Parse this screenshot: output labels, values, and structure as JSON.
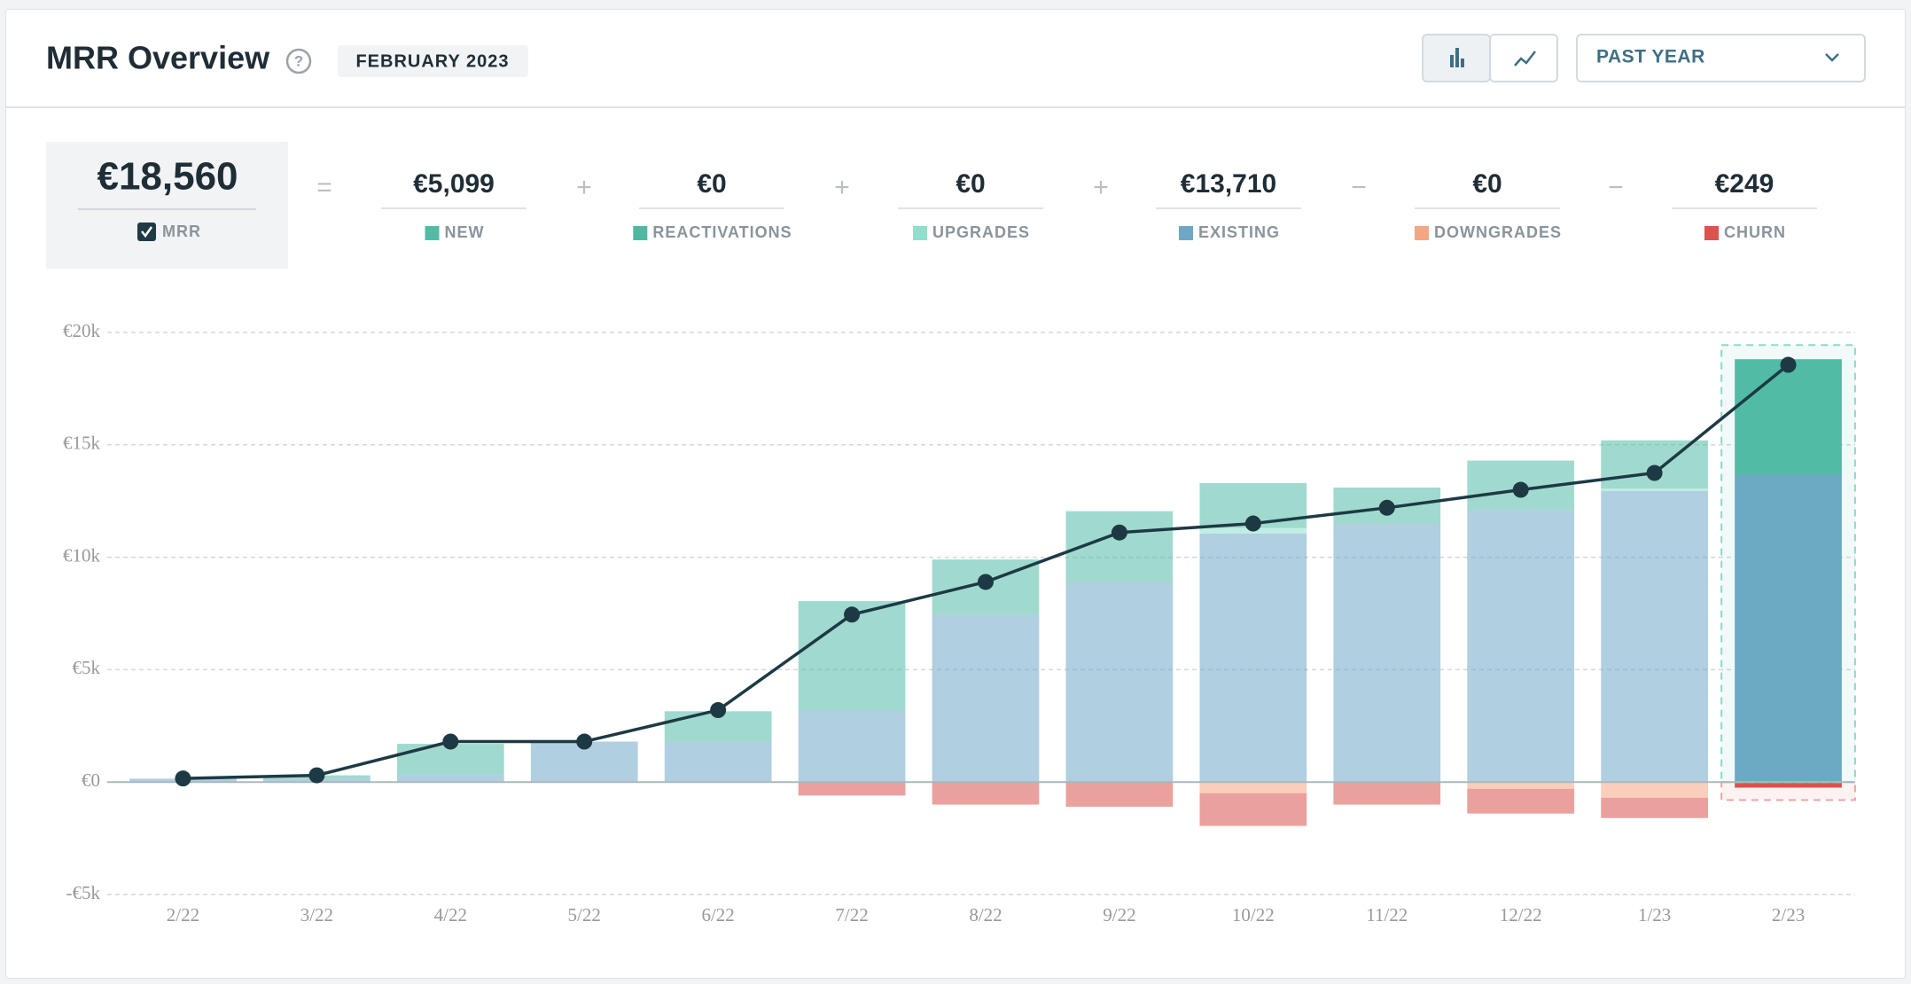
{
  "header": {
    "title": "MRR Overview",
    "period": "FEBRUARY 2023",
    "range": "PAST YEAR"
  },
  "summary": {
    "mrr": {
      "value": "€18,560",
      "label": "MRR"
    },
    "items": [
      {
        "operator": "=",
        "value": "€5,099"
      },
      {
        "operator": "+",
        "value": "€0"
      },
      {
        "operator": "+",
        "value": "€0"
      },
      {
        "operator": "+",
        "value": "€13,710"
      },
      {
        "operator": "−",
        "value": "€0"
      },
      {
        "operator": "−",
        "value": "€249"
      }
    ]
  },
  "chart_data": {
    "type": "bar",
    "categories": [
      "2/22",
      "3/22",
      "4/22",
      "5/22",
      "6/22",
      "7/22",
      "8/22",
      "9/22",
      "10/22",
      "11/22",
      "12/22",
      "1/23",
      "2/23"
    ],
    "series": [
      {
        "name": "NEW",
        "color": "#52bba6",
        "values": [
          0,
          150,
          1400,
          0,
          1350,
          4850,
          2450,
          3150,
          2000,
          1600,
          2200,
          2150,
          5099
        ]
      },
      {
        "name": "REACTIVATIONS",
        "color": "#4fb8a0",
        "values": [
          0,
          0,
          0,
          0,
          0,
          0,
          0,
          0,
          0,
          0,
          0,
          0,
          0
        ]
      },
      {
        "name": "UPGRADES",
        "color": "#8ee0cc",
        "values": [
          0,
          0,
          0,
          0,
          0,
          0,
          0,
          0,
          250,
          0,
          0,
          100,
          0
        ]
      },
      {
        "name": "EXISTING",
        "color": "#6fa8c6",
        "values": [
          150,
          150,
          300,
          1800,
          1800,
          3200,
          7450,
          8900,
          11050,
          11500,
          12100,
          12950,
          13710
        ]
      },
      {
        "name": "DOWNGRADES",
        "color": "#f4a582",
        "values": [
          0,
          0,
          0,
          0,
          0,
          0,
          0,
          0,
          -500,
          0,
          -300,
          -700,
          0
        ]
      },
      {
        "name": "CHURN",
        "color": "#d9534f",
        "values": [
          0,
          0,
          0,
          0,
          0,
          -600,
          -1000,
          -1100,
          -1450,
          -1000,
          -1100,
          -900,
          -249
        ]
      },
      {
        "type": "line",
        "color": "#1d3a44",
        "values": [
          160,
          300,
          1800,
          1800,
          3200,
          7450,
          8900,
          11100,
          11500,
          12200,
          13000,
          13750,
          18560
        ]
      }
    ],
    "ylim": [
      -5000,
      20000
    ],
    "yticks": [
      {
        "value": -5000,
        "label": "-€5k"
      },
      {
        "value": 0,
        "label": "€0"
      },
      {
        "value": 5000,
        "label": "€5k"
      },
      {
        "value": 10000,
        "label": "€10k"
      },
      {
        "value": 15000,
        "label": "€15k"
      },
      {
        "value": 20000,
        "label": "€20k"
      }
    ],
    "grid": true
  }
}
